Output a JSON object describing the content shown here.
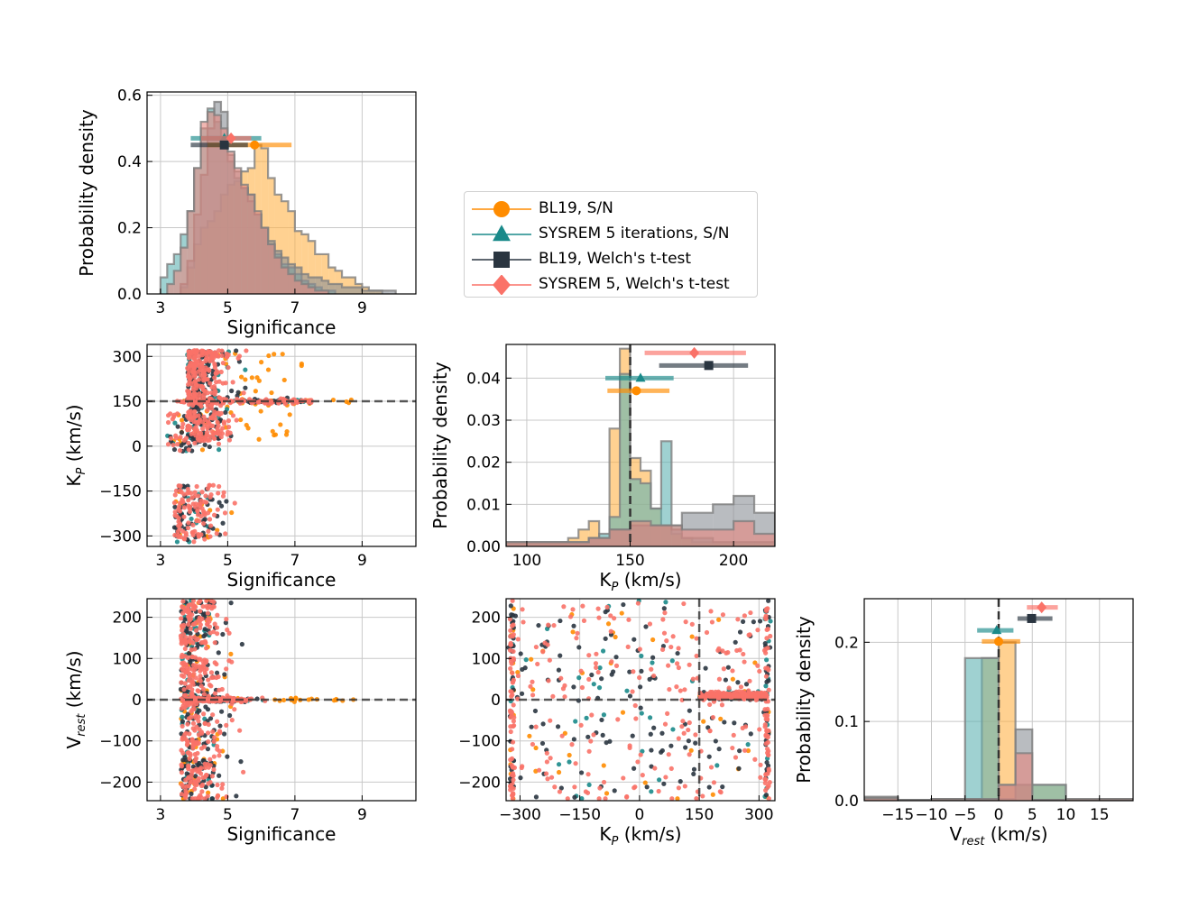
{
  "colors": {
    "bl19_sn": "#ff8c00",
    "sysrem_sn": "#1a8a8a",
    "bl19_welch": "#2a3540",
    "sysrem_welch": "#fa7268"
  },
  "legend": {
    "entries": [
      {
        "label": "BL19, S/N",
        "marker": "circle",
        "color": "#ff8c00"
      },
      {
        "label": "SYSREM 5 iterations, S/N",
        "marker": "triangle",
        "color": "#1a8a8a"
      },
      {
        "label": "BL19, Welch's t-test",
        "marker": "square",
        "color": "#2a3540"
      },
      {
        "label": "SYSREM 5, Welch's t-test",
        "marker": "diamond",
        "color": "#fa7268"
      }
    ]
  },
  "chart_data": [
    {
      "id": "sig_hist",
      "type": "histogram",
      "xlabel": "Significance",
      "ylabel": "Probability density",
      "xlim": [
        2.6,
        10.6
      ],
      "ylim": [
        0,
        0.61
      ],
      "xticks": [
        3,
        5,
        7,
        9
      ],
      "yticks": [
        0.0,
        0.2,
        0.4,
        0.6
      ],
      "ytick_labels": [
        "0.0",
        "0.2",
        "0.4",
        "0.6"
      ],
      "series": [
        {
          "key": "bl19_sn",
          "bin_edges": [
            3.6,
            3.8,
            4.0,
            4.2,
            4.4,
            4.6,
            4.8,
            5.0,
            5.2,
            5.4,
            5.6,
            5.8,
            6.0,
            6.2,
            6.4,
            6.6,
            6.8,
            7.0,
            7.2,
            7.4,
            7.6,
            7.8,
            8.0,
            8.2,
            8.4,
            8.6,
            8.8,
            9.0,
            9.2,
            9.4,
            9.6
          ],
          "values": [
            0.02,
            0.08,
            0.15,
            0.2,
            0.22,
            0.25,
            0.3,
            0.33,
            0.34,
            0.37,
            0.38,
            0.45,
            0.44,
            0.35,
            0.3,
            0.28,
            0.25,
            0.19,
            0.18,
            0.16,
            0.12,
            0.12,
            0.08,
            0.07,
            0.05,
            0.05,
            0.03,
            0.02,
            0.01,
            0.01
          ]
        },
        {
          "key": "sysrem_sn",
          "bin_edges": [
            3.0,
            3.2,
            3.4,
            3.6,
            3.8,
            4.0,
            4.2,
            4.4,
            4.6,
            4.8,
            5.0,
            5.2,
            5.4,
            5.6,
            5.8,
            6.0,
            6.2,
            6.4,
            6.6,
            6.8,
            7.0,
            7.2,
            7.4,
            7.6,
            7.8,
            8.0,
            8.2
          ],
          "values": [
            0.05,
            0.09,
            0.12,
            0.18,
            0.25,
            0.38,
            0.5,
            0.56,
            0.52,
            0.46,
            0.4,
            0.35,
            0.32,
            0.3,
            0.24,
            0.2,
            0.15,
            0.12,
            0.09,
            0.08,
            0.06,
            0.04,
            0.03,
            0.02,
            0.01,
            0.01
          ]
        },
        {
          "key": "bl19_welch",
          "bin_edges": [
            3.6,
            3.8,
            4.0,
            4.2,
            4.4,
            4.6,
            4.8,
            5.0,
            5.2,
            5.4,
            5.6,
            5.8,
            6.0,
            6.2,
            6.4,
            6.6,
            6.8,
            7.0,
            7.2,
            7.4,
            7.6,
            7.8,
            8.0,
            8.2,
            8.4,
            8.6,
            8.8,
            9.0,
            9.2,
            9.4,
            9.6,
            9.8,
            10.0
          ],
          "values": [
            0.03,
            0.1,
            0.24,
            0.36,
            0.5,
            0.58,
            0.55,
            0.42,
            0.37,
            0.32,
            0.28,
            0.24,
            0.2,
            0.16,
            0.13,
            0.11,
            0.09,
            0.08,
            0.06,
            0.05,
            0.05,
            0.04,
            0.03,
            0.03,
            0.02,
            0.02,
            0.02,
            0.01,
            0.01,
            0.01,
            0.01,
            0.01
          ]
        },
        {
          "key": "sysrem_welch",
          "bin_edges": [
            3.2,
            3.4,
            3.6,
            3.8,
            4.0,
            4.2,
            4.4,
            4.6,
            4.8,
            5.0,
            5.2,
            5.4,
            5.6,
            5.8,
            6.0,
            6.2,
            6.4,
            6.6,
            6.8,
            7.0,
            7.2,
            7.4,
            7.6,
            7.8,
            8.0
          ],
          "values": [
            0.03,
            0.07,
            0.14,
            0.25,
            0.38,
            0.52,
            0.55,
            0.54,
            0.5,
            0.43,
            0.38,
            0.33,
            0.3,
            0.25,
            0.2,
            0.15,
            0.11,
            0.08,
            0.06,
            0.04,
            0.03,
            0.02,
            0.01,
            0.01
          ]
        }
      ],
      "errorbars": [
        {
          "key": "bl19_sn",
          "center": 5.8,
          "low": 4.4,
          "high": 6.9,
          "y": 0.45
        },
        {
          "key": "sysrem_sn",
          "center": 4.9,
          "low": 3.9,
          "high": 6.0,
          "y": 0.47
        },
        {
          "key": "bl19_welch",
          "center": 4.9,
          "low": 3.9,
          "high": 5.6,
          "y": 0.45
        },
        {
          "key": "sysrem_welch",
          "center": 5.1,
          "low": 4.2,
          "high": 5.7,
          "y": 0.47
        }
      ]
    },
    {
      "id": "kp_sig_scatter",
      "type": "scatter",
      "xlabel": "Significance",
      "ylabel": "K_P (km/s)",
      "xlim": [
        2.6,
        10.6
      ],
      "ylim": [
        -335,
        340
      ],
      "xticks": [
        3,
        5,
        7,
        9
      ],
      "yticks": [
        -300,
        -150,
        0,
        150,
        300
      ],
      "ytick_labels": [
        "−300",
        "−150",
        "0",
        "150",
        "300"
      ],
      "hline": 150
    },
    {
      "id": "kp_hist",
      "type": "histogram",
      "xlabel": "K_P (km/s)",
      "ylabel": "Probability density",
      "xlim": [
        90,
        220
      ],
      "ylim": [
        0,
        0.048
      ],
      "xticks": [
        100,
        150,
        200
      ],
      "yticks": [
        0.0,
        0.01,
        0.02,
        0.03,
        0.04
      ],
      "ytick_labels": [
        "0.00",
        "0.01",
        "0.02",
        "0.03",
        "0.04"
      ],
      "vline": 150,
      "series": [
        {
          "key": "bl19_sn",
          "bin_edges": [
            90,
            120,
            125,
            130,
            135,
            140,
            145,
            150,
            155,
            160,
            165,
            170,
            175,
            180,
            190,
            220
          ],
          "values": [
            0.001,
            0.002,
            0.004,
            0.006,
            0.002,
            0.028,
            0.047,
            0.021,
            0.018,
            0.009,
            0.005,
            0.003,
            0.002,
            0.001,
            0.001
          ]
        },
        {
          "key": "sysrem_sn",
          "bin_edges": [
            90,
            125,
            130,
            135,
            140,
            145,
            150,
            155,
            160,
            165,
            170,
            175,
            190,
            220
          ],
          "values": [
            0.001,
            0.001,
            0.002,
            0.003,
            0.007,
            0.041,
            0.016,
            0.015,
            0.009,
            0.025,
            0.005,
            0.002,
            0.001
          ]
        },
        {
          "key": "bl19_welch",
          "bin_edges": [
            90,
            110,
            120,
            130,
            140,
            150,
            160,
            170,
            175,
            190,
            200,
            210,
            220
          ],
          "values": [
            0.001,
            0.001,
            0.001,
            0.002,
            0.004,
            0.005,
            0.005,
            0.004,
            0.008,
            0.01,
            0.012,
            0.008
          ]
        },
        {
          "key": "sysrem_welch",
          "bin_edges": [
            90,
            110,
            120,
            130,
            140,
            150,
            160,
            170,
            175,
            190,
            200,
            210,
            220
          ],
          "values": [
            0.001,
            0.001,
            0.001,
            0.002,
            0.004,
            0.006,
            0.005,
            0.005,
            0.004,
            0.004,
            0.006,
            0.003
          ]
        }
      ],
      "errorbars": [
        {
          "key": "bl19_sn",
          "center": 153,
          "low": 139,
          "high": 169,
          "y": 0.037
        },
        {
          "key": "sysrem_sn",
          "center": 155,
          "low": 138,
          "high": 171,
          "y": 0.04
        },
        {
          "key": "bl19_welch",
          "center": 188,
          "low": 164,
          "high": 207,
          "y": 0.043
        },
        {
          "key": "sysrem_welch",
          "center": 181,
          "low": 157,
          "high": 206,
          "y": 0.046
        }
      ]
    },
    {
      "id": "vrest_sig_scatter",
      "type": "scatter",
      "xlabel": "Significance",
      "ylabel": "V_rest (km/s)",
      "xlim": [
        2.6,
        10.6
      ],
      "ylim": [
        -245,
        245
      ],
      "xticks": [
        3,
        5,
        7,
        9
      ],
      "yticks": [
        -200,
        -100,
        0,
        100,
        200
      ],
      "ytick_labels": [
        "−200",
        "−100",
        "0",
        "100",
        "200"
      ],
      "hline": 0
    },
    {
      "id": "vrest_kp_scatter",
      "type": "scatter",
      "xlabel": "K_P (km/s)",
      "ylabel": "",
      "xlim": [
        -335,
        340
      ],
      "ylim": [
        -245,
        245
      ],
      "xticks": [
        -300,
        -150,
        0,
        150,
        300
      ],
      "yticks": [
        -200,
        -100,
        0,
        100,
        200
      ],
      "xtick_labels": [
        "−300",
        "−150",
        "0",
        "150",
        "300"
      ],
      "ytick_labels": [
        "−200",
        "−100",
        "0",
        "100",
        "200"
      ],
      "hline": 0,
      "vline": 150
    },
    {
      "id": "vrest_hist",
      "type": "histogram",
      "xlabel": "V_rest (km/s)",
      "ylabel": "Probability density",
      "xlim": [
        -20,
        20
      ],
      "ylim": [
        0,
        0.255
      ],
      "xticks": [
        -15,
        -10,
        -5,
        0,
        5,
        10,
        15
      ],
      "yticks": [
        0.0,
        0.1,
        0.2
      ],
      "xtick_labels": [
        "−15",
        "−10",
        "−5",
        "0",
        "5",
        "10",
        "15"
      ],
      "ytick_labels": [
        "0.0",
        "0.1",
        "0.2"
      ],
      "vline": 0,
      "series": [
        {
          "key": "bl19_sn",
          "bin_edges": [
            -20,
            -15,
            -10,
            -5,
            -2.5,
            0,
            2.5,
            5,
            10,
            15,
            20
          ],
          "values": [
            0.004,
            0.001,
            0.002,
            0.002,
            0.18,
            0.2,
            0.02,
            0.02,
            0.001,
            0.002
          ]
        },
        {
          "key": "sysrem_sn",
          "bin_edges": [
            -20,
            -15,
            -10,
            -5,
            -2.5,
            0,
            2.5,
            5,
            10,
            15,
            20
          ],
          "values": [
            0.003,
            0.001,
            0.002,
            0.18,
            0.18,
            0.002,
            0.02,
            0.02,
            0.001,
            0.002
          ]
        },
        {
          "key": "bl19_welch",
          "bin_edges": [
            -20,
            -15,
            -10,
            -5,
            0,
            2.5,
            5,
            10,
            15,
            20
          ],
          "values": [
            0.005,
            0.001,
            0.002,
            0.002,
            0.02,
            0.09,
            0.001,
            0.002,
            0.002
          ]
        },
        {
          "key": "sysrem_welch",
          "bin_edges": [
            -20,
            -15,
            -10,
            -5,
            0,
            2.5,
            5,
            10,
            15,
            20
          ],
          "values": [
            0.003,
            0.001,
            0.002,
            0.002,
            0.02,
            0.06,
            0.001,
            0.002,
            0.002
          ]
        }
      ],
      "errorbars": [
        {
          "key": "bl19_sn",
          "center": 0,
          "low": -2.5,
          "high": 3.2,
          "y": 0.201
        },
        {
          "key": "sysrem_sn",
          "center": -0.3,
          "low": -3.2,
          "high": 2.2,
          "y": 0.215
        },
        {
          "key": "bl19_welch",
          "center": 4.9,
          "low": 2.8,
          "high": 8.0,
          "y": 0.23
        },
        {
          "key": "sysrem_welch",
          "center": 6.4,
          "low": 4.2,
          "high": 8.8,
          "y": 0.244
        }
      ]
    }
  ]
}
